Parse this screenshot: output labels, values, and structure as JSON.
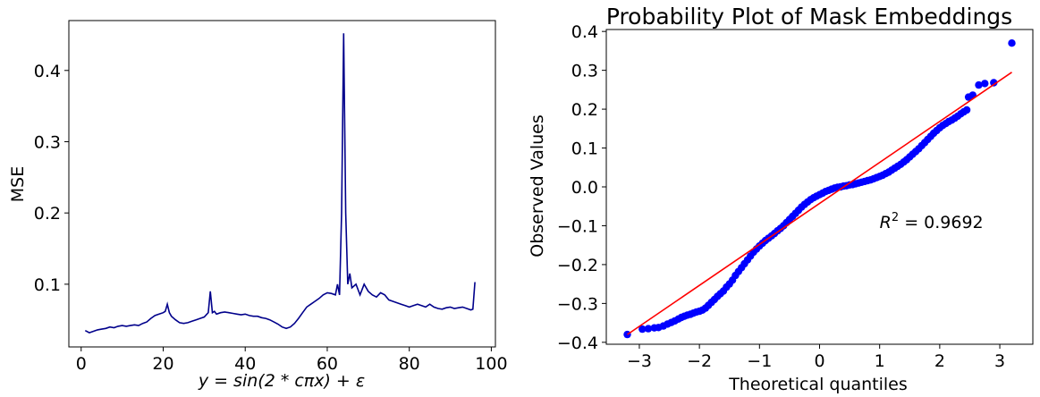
{
  "chart_data": [
    {
      "type": "line",
      "title": "",
      "xlabel": "y = sin(2 * cπx) + ε",
      "ylabel": "MSE",
      "xlim": [
        -3,
        101
      ],
      "ylim": [
        0.012,
        0.47
      ],
      "xticks": [
        0,
        20,
        40,
        60,
        80,
        100
      ],
      "yticks": [
        0.1,
        0.2,
        0.3,
        0.4
      ],
      "xtick_labels": [
        "0",
        "20",
        "40",
        "60",
        "80",
        "100"
      ],
      "ytick_labels": [
        "0.1",
        "0.2",
        "0.3",
        "0.4"
      ],
      "color": "#00008b",
      "grid": false,
      "series": [
        {
          "x": [
            1,
            2,
            3,
            4,
            5,
            6,
            7,
            8,
            9,
            10,
            11,
            12,
            13,
            14,
            15,
            16,
            17,
            18,
            19,
            20,
            20.5,
            21,
            21.5,
            22,
            23,
            24,
            25,
            26,
            27,
            28,
            29,
            30,
            31,
            31.5,
            32,
            32.5,
            33,
            34,
            35,
            36,
            37,
            38,
            39,
            40,
            41,
            42,
            43,
            44,
            45,
            46,
            47,
            48,
            49,
            50,
            51,
            52,
            53,
            54,
            55,
            56,
            57,
            58,
            59,
            60,
            61,
            62,
            62.5,
            63,
            63.5,
            64,
            64.5,
            65,
            65.5,
            66,
            67,
            68,
            69,
            70,
            71,
            72,
            73,
            74,
            75,
            76,
            77,
            78,
            79,
            80,
            81,
            82,
            83,
            84,
            85,
            86,
            87,
            88,
            89,
            90,
            91,
            92,
            93,
            94,
            95,
            95.5,
            96
          ],
          "y": [
            0.035,
            0.032,
            0.034,
            0.036,
            0.037,
            0.038,
            0.04,
            0.039,
            0.041,
            0.042,
            0.041,
            0.042,
            0.043,
            0.042,
            0.045,
            0.047,
            0.052,
            0.056,
            0.058,
            0.06,
            0.062,
            0.072,
            0.06,
            0.055,
            0.05,
            0.046,
            0.045,
            0.046,
            0.048,
            0.05,
            0.052,
            0.054,
            0.06,
            0.09,
            0.06,
            0.062,
            0.058,
            0.06,
            0.061,
            0.06,
            0.059,
            0.058,
            0.057,
            0.058,
            0.056,
            0.055,
            0.055,
            0.053,
            0.052,
            0.05,
            0.047,
            0.044,
            0.04,
            0.038,
            0.04,
            0.045,
            0.052,
            0.06,
            0.068,
            0.072,
            0.076,
            0.08,
            0.085,
            0.088,
            0.087,
            0.085,
            0.1,
            0.085,
            0.2,
            0.452,
            0.2,
            0.1,
            0.115,
            0.095,
            0.1,
            0.085,
            0.1,
            0.09,
            0.085,
            0.082,
            0.088,
            0.085,
            0.078,
            0.076,
            0.074,
            0.072,
            0.07,
            0.068,
            0.07,
            0.072,
            0.07,
            0.068,
            0.072,
            0.068,
            0.066,
            0.065,
            0.067,
            0.068,
            0.066,
            0.067,
            0.068,
            0.066,
            0.064,
            0.065,
            0.103
          ]
        }
      ]
    },
    {
      "type": "scatter",
      "title": "Probability Plot of Mask Embeddings",
      "xlabel": "Theoretical quantiles",
      "ylabel": "Observed Values",
      "xlim": [
        -3.55,
        3.55
      ],
      "ylim": [
        -0.405,
        0.405
      ],
      "xticks": [
        -3,
        -2,
        -1,
        0,
        1,
        2,
        3
      ],
      "yticks": [
        -0.4,
        -0.3,
        -0.2,
        -0.1,
        0.0,
        0.1,
        0.2,
        0.3,
        0.4
      ],
      "xtick_labels": [
        "−3",
        "−2",
        "−1",
        "0",
        "1",
        "2",
        "3"
      ],
      "ytick_labels": [
        "−0.4",
        "−0.3",
        "−0.2",
        "−0.1",
        "0.0",
        "0.1",
        "0.2",
        "0.3",
        "0.4"
      ],
      "point_color": "#0000ff",
      "fit_color": "#ff0000",
      "grid": false,
      "fit_line": {
        "x": [
          -3.2,
          3.2
        ],
        "y": [
          -0.38,
          0.295
        ]
      },
      "annotation": {
        "math_base": "R",
        "math_sup": "2",
        "text": " = 0.9692",
        "x": 1.0,
        "y": -0.09
      },
      "points": [
        [
          -3.2,
          -0.38
        ],
        [
          -2.95,
          -0.366
        ],
        [
          -2.85,
          -0.365
        ],
        [
          -2.75,
          -0.363
        ],
        [
          -2.68,
          -0.362
        ],
        [
          -2.6,
          -0.358
        ],
        [
          -2.53,
          -0.353
        ],
        [
          -2.47,
          -0.349
        ],
        [
          -2.41,
          -0.345
        ],
        [
          -2.35,
          -0.34
        ],
        [
          -2.3,
          -0.336
        ],
        [
          -2.25,
          -0.333
        ],
        [
          -2.2,
          -0.33
        ],
        [
          -2.15,
          -0.328
        ],
        [
          -2.1,
          -0.325
        ],
        [
          -2.05,
          -0.322
        ],
        [
          -2.0,
          -0.32
        ],
        [
          -1.95,
          -0.317
        ],
        [
          -1.9,
          -0.312
        ],
        [
          -1.85,
          -0.305
        ],
        [
          -1.8,
          -0.297
        ],
        [
          -1.75,
          -0.29
        ],
        [
          -1.7,
          -0.282
        ],
        [
          -1.65,
          -0.275
        ],
        [
          -1.6,
          -0.268
        ],
        [
          -1.55,
          -0.258
        ],
        [
          -1.5,
          -0.25
        ],
        [
          -1.45,
          -0.24
        ],
        [
          -1.4,
          -0.228
        ],
        [
          -1.35,
          -0.218
        ],
        [
          -1.3,
          -0.208
        ],
        [
          -1.25,
          -0.198
        ],
        [
          -1.2,
          -0.188
        ],
        [
          -1.15,
          -0.178
        ],
        [
          -1.1,
          -0.168
        ],
        [
          -1.05,
          -0.16
        ],
        [
          -1.0,
          -0.152
        ],
        [
          -0.95,
          -0.145
        ],
        [
          -0.9,
          -0.138
        ],
        [
          -0.85,
          -0.132
        ],
        [
          -0.8,
          -0.126
        ],
        [
          -0.75,
          -0.12
        ],
        [
          -0.7,
          -0.113
        ],
        [
          -0.65,
          -0.107
        ],
        [
          -0.6,
          -0.1
        ],
        [
          -0.55,
          -0.092
        ],
        [
          -0.5,
          -0.084
        ],
        [
          -0.45,
          -0.076
        ],
        [
          -0.4,
          -0.068
        ],
        [
          -0.35,
          -0.06
        ],
        [
          -0.3,
          -0.052
        ],
        [
          -0.25,
          -0.045
        ],
        [
          -0.2,
          -0.039
        ],
        [
          -0.15,
          -0.033
        ],
        [
          -0.1,
          -0.028
        ],
        [
          -0.05,
          -0.024
        ],
        [
          0.0,
          -0.02
        ],
        [
          0.05,
          -0.016
        ],
        [
          0.1,
          -0.012
        ],
        [
          0.15,
          -0.009
        ],
        [
          0.2,
          -0.006
        ],
        [
          0.25,
          -0.003
        ],
        [
          0.3,
          -0.001
        ],
        [
          0.35,
          0.0
        ],
        [
          0.4,
          0.002
        ],
        [
          0.45,
          0.003
        ],
        [
          0.5,
          0.005
        ],
        [
          0.55,
          0.006
        ],
        [
          0.6,
          0.008
        ],
        [
          0.65,
          0.01
        ],
        [
          0.7,
          0.012
        ],
        [
          0.75,
          0.014
        ],
        [
          0.8,
          0.016
        ],
        [
          0.85,
          0.018
        ],
        [
          0.9,
          0.021
        ],
        [
          0.95,
          0.024
        ],
        [
          1.0,
          0.027
        ],
        [
          1.05,
          0.03
        ],
        [
          1.1,
          0.034
        ],
        [
          1.15,
          0.038
        ],
        [
          1.2,
          0.043
        ],
        [
          1.25,
          0.048
        ],
        [
          1.3,
          0.053
        ],
        [
          1.35,
          0.058
        ],
        [
          1.4,
          0.064
        ],
        [
          1.45,
          0.07
        ],
        [
          1.5,
          0.077
        ],
        [
          1.55,
          0.084
        ],
        [
          1.6,
          0.091
        ],
        [
          1.65,
          0.098
        ],
        [
          1.7,
          0.106
        ],
        [
          1.75,
          0.114
        ],
        [
          1.8,
          0.122
        ],
        [
          1.85,
          0.13
        ],
        [
          1.9,
          0.138
        ],
        [
          1.95,
          0.145
        ],
        [
          2.0,
          0.152
        ],
        [
          2.05,
          0.158
        ],
        [
          2.1,
          0.163
        ],
        [
          2.15,
          0.168
        ],
        [
          2.2,
          0.172
        ],
        [
          2.25,
          0.177
        ],
        [
          2.3,
          0.182
        ],
        [
          2.35,
          0.188
        ],
        [
          2.4,
          0.193
        ],
        [
          2.45,
          0.198
        ],
        [
          2.48,
          0.231
        ],
        [
          2.55,
          0.236
        ],
        [
          2.65,
          0.262
        ],
        [
          2.75,
          0.266
        ],
        [
          2.9,
          0.268
        ],
        [
          3.2,
          0.37
        ]
      ]
    }
  ]
}
